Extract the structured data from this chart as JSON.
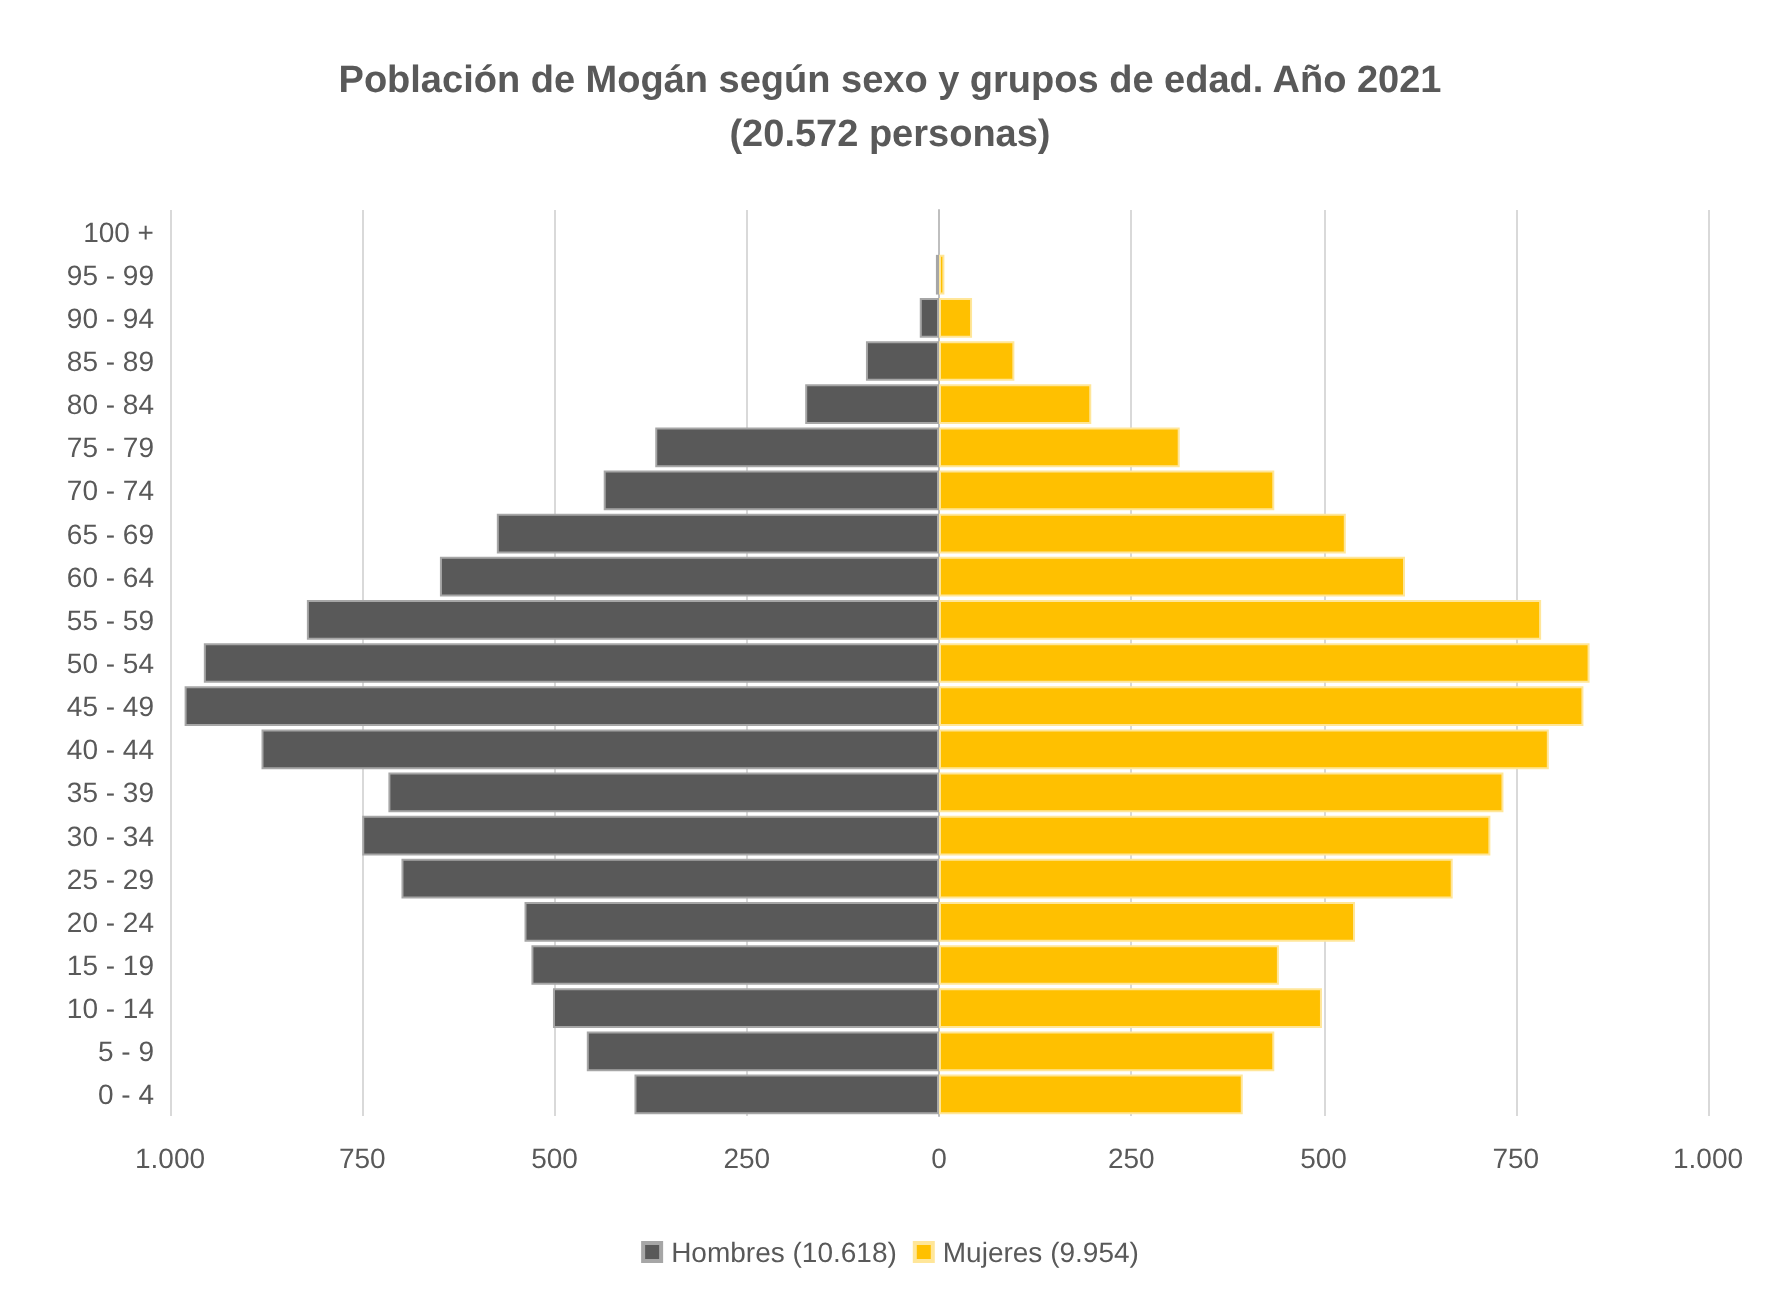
{
  "chart_data": {
    "type": "bar",
    "orientation": "horizontal",
    "stacked": true,
    "title": "Población de Mogán según sexo y grupos de edad. Año 2021",
    "subtitle": "(20.572 personas)",
    "categories": [
      "100 +",
      "95 - 99",
      "90 - 94",
      "85 - 89",
      "80 - 84",
      "75 - 79",
      "70 - 74",
      "65 - 69",
      "60 - 64",
      "55 - 59",
      "50 - 54",
      "45 - 49",
      "40 - 44",
      "35 - 39",
      "30 - 34",
      "25 - 29",
      "20 - 24",
      "15 - 19",
      "10 - 14",
      "5 - 9",
      "0 - 4"
    ],
    "series": [
      {
        "name": "Hombres (10.618)",
        "color": "#595959",
        "values": [
          null,
          -4,
          -25,
          -95,
          -174,
          -369,
          -436,
          -575,
          -649,
          -822,
          -956,
          -981,
          -881,
          -716,
          -750,
          -699,
          -539,
          -530,
          -502,
          -458,
          -396
        ]
      },
      {
        "name": "Mujeres (9.954)",
        "color": "#ffc000",
        "values": [
          null,
          7,
          43,
          98,
          198,
          313,
          436,
          529,
          606,
          783,
          846,
          838,
          793,
          734,
          717,
          668,
          541,
          442,
          498,
          436,
          395
        ]
      }
    ],
    "xlim": [
      -1000,
      1000
    ],
    "xticks": [
      {
        "value": -1000,
        "label": "1.000"
      },
      {
        "value": -750,
        "label": "750"
      },
      {
        "value": -500,
        "label": "500"
      },
      {
        "value": -250,
        "label": "250"
      },
      0,
      250,
      500,
      750,
      {
        "value": 1000,
        "label": "1.000"
      }
    ],
    "grid": "x",
    "legend": "bottom"
  }
}
